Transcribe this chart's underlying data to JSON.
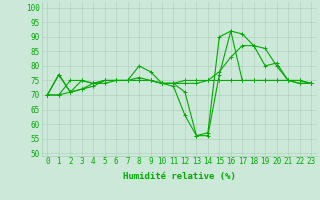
{
  "xlabel": "Humidité relative (%)",
  "ylabel_ticks": [
    50,
    55,
    60,
    65,
    70,
    75,
    80,
    85,
    90,
    95,
    100
  ],
  "xlim": [
    -0.5,
    23.5
  ],
  "ylim": [
    49,
    102
  ],
  "background_color": "#cce8d8",
  "grid_color": "#aaccbb",
  "line_color": "#00aa00",
  "series": [
    [
      70,
      77,
      71,
      72,
      73,
      75,
      75,
      75,
      80,
      78,
      74,
      74,
      71,
      56,
      56,
      77,
      92,
      91,
      87,
      80,
      81,
      75,
      75,
      74
    ],
    [
      70,
      70,
      71,
      75,
      74,
      75,
      75,
      75,
      75,
      75,
      74,
      74,
      74,
      74,
      75,
      78,
      83,
      87,
      87,
      86,
      80,
      75,
      74,
      74
    ],
    [
      70,
      77,
      71,
      72,
      74,
      75,
      75,
      75,
      76,
      75,
      74,
      73,
      63,
      56,
      57,
      90,
      92,
      75,
      75,
      75,
      75,
      75,
      75,
      74
    ],
    [
      70,
      70,
      75,
      75,
      74,
      74,
      75,
      75,
      75,
      75,
      74,
      74,
      75,
      75,
      75,
      75,
      75,
      75,
      75,
      75,
      75,
      75,
      74,
      74
    ]
  ],
  "xticks": [
    0,
    1,
    2,
    3,
    4,
    5,
    6,
    7,
    8,
    9,
    10,
    11,
    12,
    13,
    14,
    15,
    16,
    17,
    18,
    19,
    20,
    21,
    22,
    23
  ],
  "xlabel_fontsize": 6.5,
  "tick_fontsize": 5.5
}
